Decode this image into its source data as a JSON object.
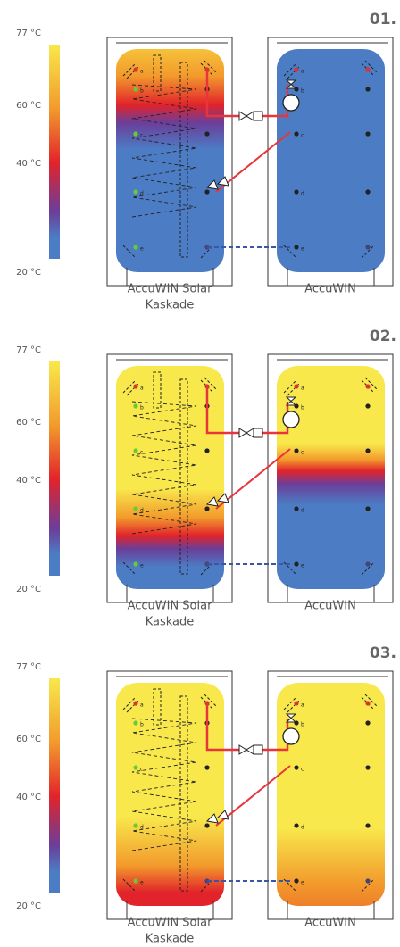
{
  "panels": [
    {
      "number": "01.",
      "scale_labels": [
        "77 °C",
        "60 °C",
        "40 °C",
        "20 °C"
      ],
      "tanks": [
        {
          "label": [
            "AccuWIN Solar",
            "Kaskade"
          ],
          "ports": [
            "a",
            "b",
            "c",
            "d",
            "e"
          ]
        },
        {
          "label": [
            "AccuWIN"
          ],
          "ports": [
            "a",
            "b",
            "c",
            "d",
            "e"
          ]
        }
      ]
    },
    {
      "number": "02.",
      "scale_labels": [
        "77 °C",
        "60 °C",
        "40 °C",
        "20 °C"
      ],
      "tanks": [
        {
          "label": [
            "AccuWIN Solar",
            "Kaskade"
          ],
          "ports": [
            "a",
            "b",
            "c",
            "d",
            "e"
          ]
        },
        {
          "label": [
            "AccuWIN"
          ],
          "ports": [
            "a",
            "b",
            "c",
            "d",
            "e"
          ]
        }
      ]
    },
    {
      "number": "03.",
      "scale_labels": [
        "77 °C",
        "60 °C",
        "40 °C",
        "20 °C"
      ],
      "tanks": [
        {
          "label": [
            "AccuWIN Solar",
            "Kaskade"
          ],
          "ports": [
            "a",
            "b",
            "c",
            "d",
            "e"
          ]
        },
        {
          "label": [
            "AccuWIN"
          ],
          "ports": [
            "a",
            "b",
            "c",
            "d",
            "e"
          ]
        }
      ]
    }
  ]
}
